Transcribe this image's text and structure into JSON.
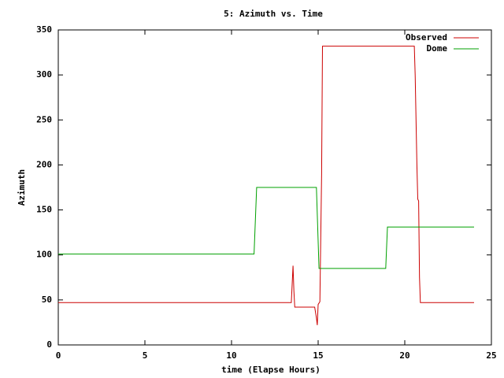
{
  "chart_data": {
    "type": "line",
    "title": "5: Azimuth vs. Time",
    "xlabel": "time (Elapse Hours)",
    "ylabel": "Azimuth",
    "xlim": [
      0,
      25
    ],
    "xticks": [
      0,
      5,
      10,
      15,
      20,
      25
    ],
    "ylim": [
      0,
      350
    ],
    "yticks": [
      0,
      50,
      100,
      150,
      200,
      250,
      300,
      350
    ],
    "grid": false,
    "legend": "top-right",
    "series": [
      {
        "name": "Observed",
        "color": "#cc0000",
        "x": [
          0,
          13.45,
          13.55,
          13.6,
          13.65,
          14.8,
          14.9,
          14.95,
          15.0,
          15.1,
          15.2,
          15.25,
          20.55,
          20.6,
          20.7,
          20.75,
          20.8,
          20.85,
          20.9,
          24
        ],
        "values": [
          47,
          47,
          88,
          60,
          42,
          42,
          30,
          22,
          45,
          48,
          190,
          332,
          332,
          300,
          200,
          162,
          160,
          75,
          47,
          47
        ]
      },
      {
        "name": "Dome",
        "color": "#00a000",
        "x": [
          0,
          11.3,
          11.45,
          14.9,
          15.05,
          18.9,
          19.0,
          24
        ],
        "values": [
          101,
          101,
          175,
          175,
          85,
          85,
          131,
          131
        ]
      }
    ]
  }
}
